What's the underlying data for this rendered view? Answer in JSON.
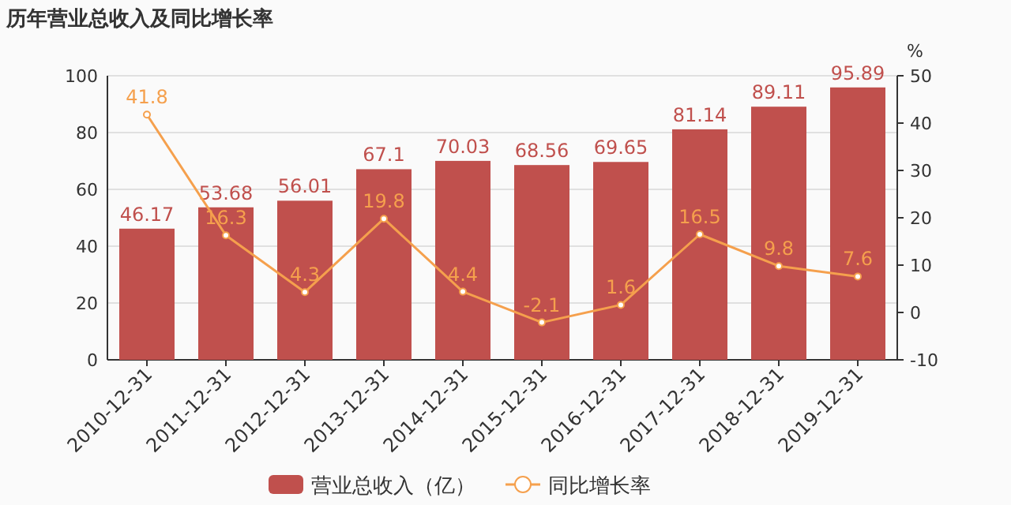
{
  "chart_data": {
    "type": "bar",
    "title": "历年营业总收入及同比增长率",
    "y2label": "%",
    "categories": [
      "2010-12-31",
      "2011-12-31",
      "2012-12-31",
      "2013-12-31",
      "2014-12-31",
      "2015-12-31",
      "2016-12-31",
      "2017-12-31",
      "2018-12-31",
      "2019-12-31"
    ],
    "series": [
      {
        "name": "营业总收入（亿）",
        "color": "#c0504d",
        "values": [
          46.17,
          53.68,
          56.01,
          67.1,
          70.03,
          68.56,
          69.65,
          81.14,
          89.11,
          95.89
        ]
      },
      {
        "name": "同比增长率",
        "type": "line",
        "axis": "y2",
        "color": "#f5a04d",
        "marker": "circle",
        "values": [
          41.8,
          16.3,
          4.3,
          19.8,
          4.4,
          -2.1,
          1.6,
          16.5,
          9.8,
          7.6
        ]
      }
    ],
    "ylim": [
      0,
      100
    ],
    "yticks": [
      0,
      20,
      40,
      60,
      80,
      100
    ],
    "y2lim": [
      -10,
      50
    ],
    "y2ticks": [
      -10,
      0,
      10,
      20,
      30,
      40,
      50
    ],
    "grid": "y",
    "legend": "bottom",
    "data_labels": true
  }
}
